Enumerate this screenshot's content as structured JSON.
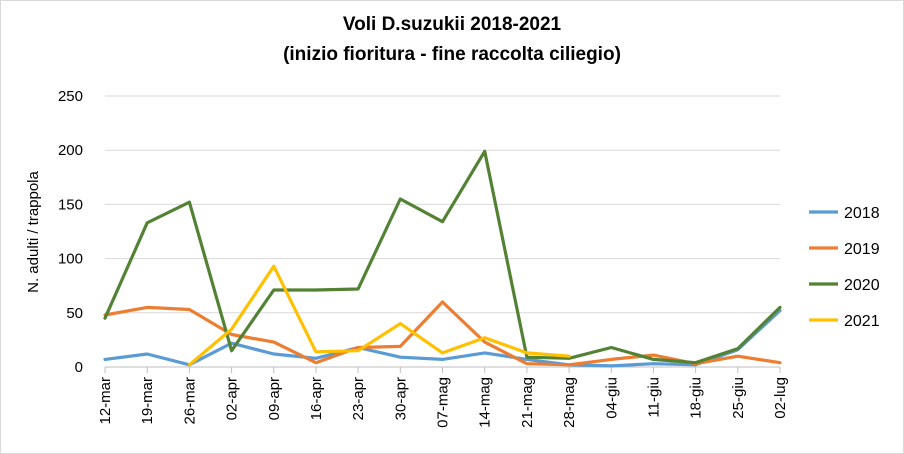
{
  "chart_data": {
    "type": "line",
    "title": "Voli D.suzukii 2018-2021",
    "subtitle": "(inizio fioritura - fine raccolta ciliegio)",
    "xlabel": "",
    "ylabel": "N. adulti / trappola",
    "ylim": [
      0,
      250
    ],
    "yticks": [
      "0",
      "50",
      "100",
      "150",
      "200",
      "250"
    ],
    "grid": true,
    "legend_position": "right",
    "categories": [
      "12-mar",
      "19-mar",
      "26-mar",
      "02-apr",
      "09-apr",
      "16-apr",
      "23-apr",
      "30-apr",
      "07-mag",
      "14-mag",
      "21-mag",
      "28-mag",
      "04-giu",
      "11-giu",
      "18-giu",
      "25-giu",
      "02-lug"
    ],
    "series": [
      {
        "name": "2018",
        "color": "#5b9bd5",
        "values": [
          7,
          12,
          2,
          22,
          12,
          8,
          18,
          9,
          7,
          13,
          7,
          2,
          1,
          3,
          2,
          16,
          52
        ]
      },
      {
        "name": "2019",
        "color": "#ed7d31",
        "values": [
          48,
          55,
          53,
          30,
          23,
          4,
          18,
          19,
          60,
          23,
          3,
          2,
          7,
          11,
          3,
          10,
          4
        ]
      },
      {
        "name": "2020",
        "color": "#548235",
        "values": [
          45,
          133,
          152,
          15,
          71,
          71,
          72,
          155,
          134,
          199,
          9,
          8,
          18,
          7,
          4,
          17,
          55
        ]
      },
      {
        "name": "2021",
        "color": "#ffc000",
        "values": [
          null,
          null,
          2,
          35,
          93,
          14,
          15,
          40,
          13,
          27,
          13,
          10,
          null,
          null,
          null,
          null,
          null
        ]
      }
    ]
  }
}
